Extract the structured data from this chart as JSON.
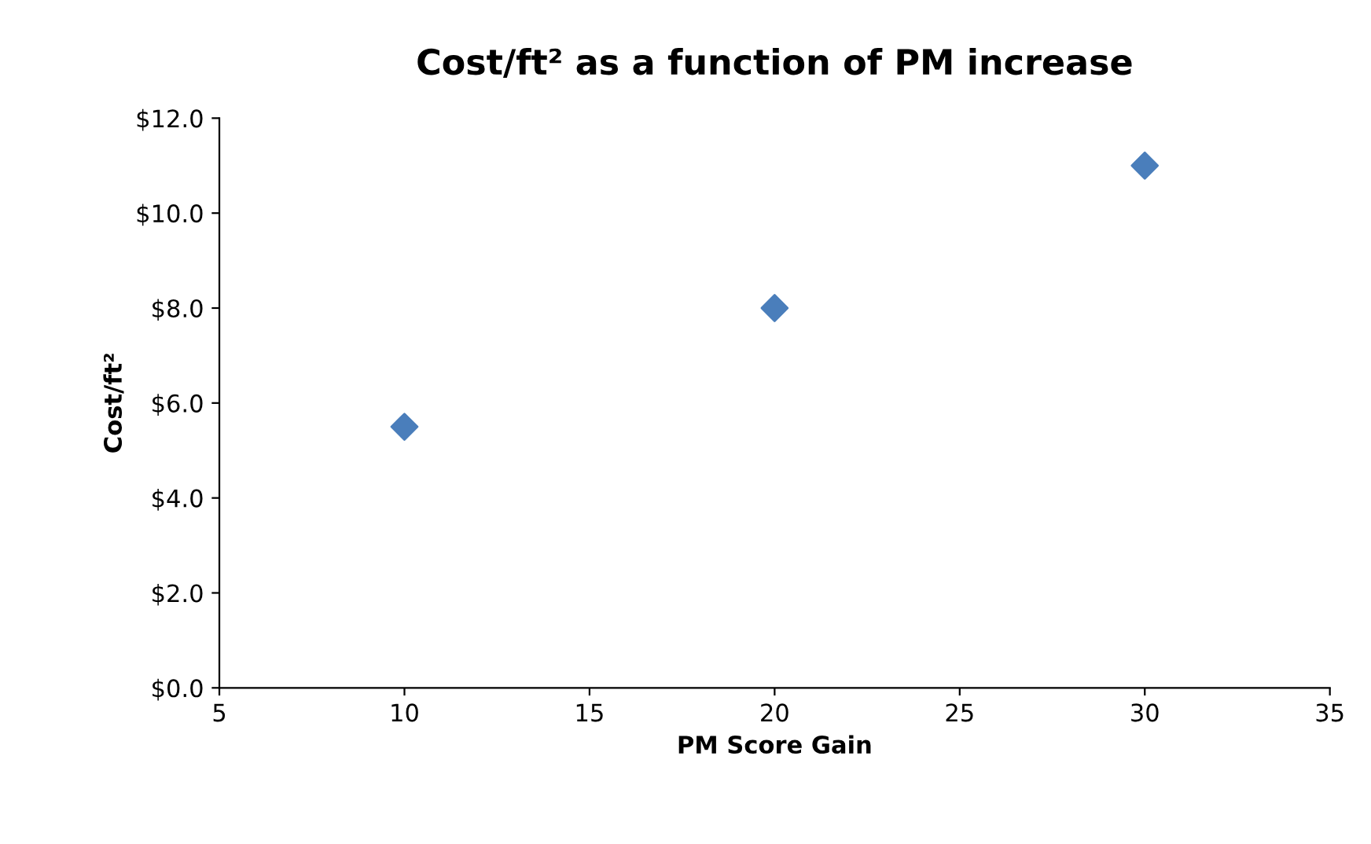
{
  "chart_data": {
    "type": "scatter",
    "title": "Cost/ft² as a function of PM increase",
    "xlabel": "PM Score Gain",
    "ylabel": "Cost/ft²",
    "x": [
      10,
      20,
      30
    ],
    "series": [
      {
        "color": "#4a7ebb",
        "values": [
          5.5,
          8.0,
          11.0
        ]
      }
    ],
    "xlim": [
      5,
      35
    ],
    "xticks": [
      5,
      10,
      15,
      20,
      25,
      30,
      35
    ],
    "ylim": [
      0,
      12
    ],
    "yticks": [
      {
        "value": 0,
        "label": "$0.0"
      },
      {
        "value": 2,
        "label": "$2.0"
      },
      {
        "value": 4,
        "label": "$4.0"
      },
      {
        "value": 6,
        "label": "$6.0"
      },
      {
        "value": 8,
        "label": "$8.0"
      },
      {
        "value": 10,
        "label": "$10.0"
      },
      {
        "value": 12,
        "label": "$12.0"
      }
    ],
    "marker": "diamond",
    "grid": false,
    "legend": false
  }
}
